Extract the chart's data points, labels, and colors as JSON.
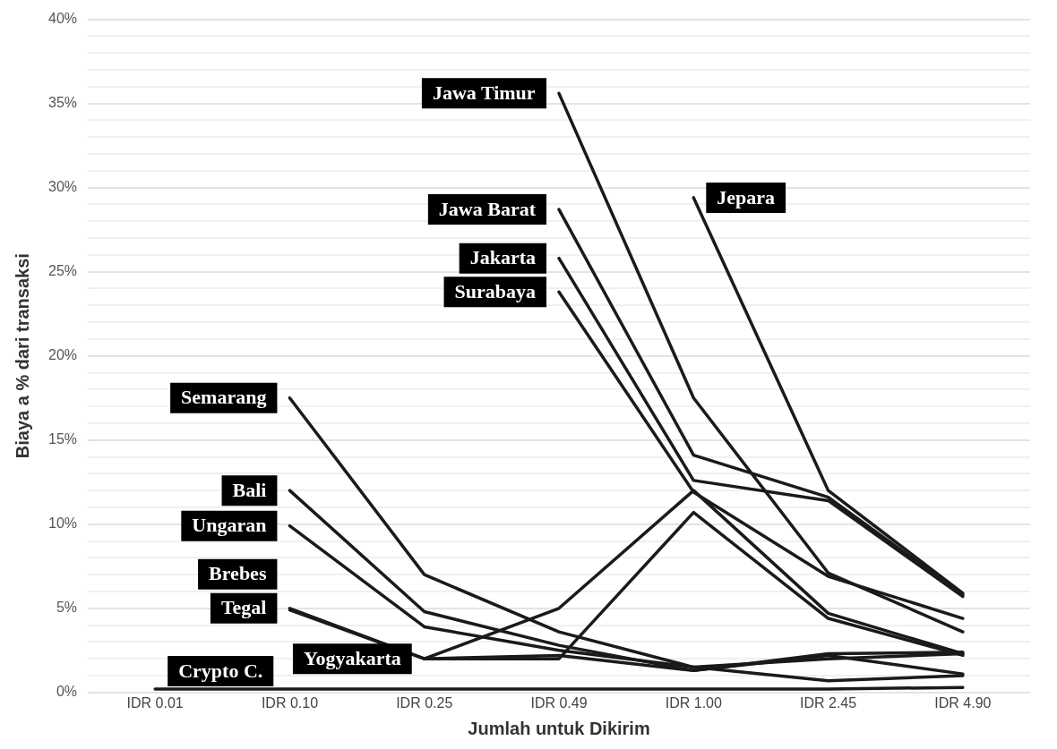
{
  "chart_data": {
    "type": "line",
    "xlabel": "Jumlah untuk Dikirim",
    "ylabel": "Biaya a % dari transaksi",
    "categories": [
      "IDR 0.01",
      "IDR 0.10",
      "IDR 0.25",
      "IDR 0.49",
      "IDR 1.00",
      "IDR 2.45",
      "IDR 4.90"
    ],
    "ylim": [
      0,
      40
    ],
    "yticks": [
      {
        "value": 0,
        "label": "0%"
      },
      {
        "value": 1,
        "label": null
      },
      {
        "value": 2,
        "label": null
      },
      {
        "value": 3,
        "label": null
      },
      {
        "value": 4,
        "label": null
      },
      {
        "value": 5,
        "label": "5%"
      },
      {
        "value": 6,
        "label": null
      },
      {
        "value": 7,
        "label": null
      },
      {
        "value": 8,
        "label": null
      },
      {
        "value": 9,
        "label": null
      },
      {
        "value": 10,
        "label": "10%"
      },
      {
        "value": 11,
        "label": null
      },
      {
        "value": 12,
        "label": null
      },
      {
        "value": 13,
        "label": null
      },
      {
        "value": 14,
        "label": null
      },
      {
        "value": 15,
        "label": "15%"
      },
      {
        "value": 16,
        "label": null
      },
      {
        "value": 17,
        "label": null
      },
      {
        "value": 18,
        "label": null
      },
      {
        "value": 19,
        "label": null
      },
      {
        "value": 20,
        "label": "20%"
      },
      {
        "value": 21,
        "label": null
      },
      {
        "value": 22,
        "label": null
      },
      {
        "value": 23,
        "label": null
      },
      {
        "value": 24,
        "label": null
      },
      {
        "value": 25,
        "label": "25%"
      },
      {
        "value": 26,
        "label": null
      },
      {
        "value": 27,
        "label": null
      },
      {
        "value": 28,
        "label": null
      },
      {
        "value": 29,
        "label": null
      },
      {
        "value": 30,
        "label": "30%"
      },
      {
        "value": 31,
        "label": null
      },
      {
        "value": 32,
        "label": null
      },
      {
        "value": 33,
        "label": null
      },
      {
        "value": 34,
        "label": null
      },
      {
        "value": 35,
        "label": "35%"
      },
      {
        "value": 36,
        "label": null
      },
      {
        "value": 37,
        "label": null
      },
      {
        "value": 38,
        "label": null
      },
      {
        "value": 39,
        "label": null
      },
      {
        "value": 40,
        "label": "40%"
      }
    ],
    "grid": "y",
    "legend": false,
    "marker": "none",
    "line_style": "solid",
    "series": [
      {
        "name": "Jawa Timur",
        "color": "#1a1a1a",
        "values": [
          null,
          null,
          null,
          35.6,
          17.5,
          7.1,
          3.6
        ]
      },
      {
        "name": "Jawa Barat",
        "color": "#1a1a1a",
        "values": [
          null,
          null,
          null,
          28.7,
          14.1,
          11.6,
          5.8
        ]
      },
      {
        "name": "Jakarta",
        "color": "#1a1a1a",
        "values": [
          null,
          null,
          null,
          25.8,
          12.6,
          11.4,
          5.7
        ]
      },
      {
        "name": "Surabaya",
        "color": "#1a1a1a",
        "values": [
          null,
          null,
          null,
          23.8,
          11.9,
          6.9,
          4.4
        ]
      },
      {
        "name": "Jepara",
        "color": "#1a1a1a",
        "values": [
          null,
          null,
          null,
          null,
          29.4,
          12.0,
          5.9
        ]
      },
      {
        "name": "Semarang",
        "color": "#1a1a1a",
        "values": [
          null,
          17.5,
          7.0,
          3.6,
          1.5,
          0.7,
          1.0
        ]
      },
      {
        "name": "Bali",
        "color": "#1a1a1a",
        "values": [
          null,
          12.0,
          4.8,
          2.8,
          1.3,
          2.3,
          2.4
        ]
      },
      {
        "name": "Ungaran",
        "color": "#1a1a1a",
        "values": [
          null,
          9.9,
          3.9,
          2.5,
          1.5,
          2.0,
          2.3
        ]
      },
      {
        "name": "Yogyakarta",
        "color": "#1a1a1a",
        "values": [
          null,
          null,
          2.0,
          5.0,
          12.0,
          4.7,
          2.3
        ]
      },
      {
        "name": "Tegal",
        "color": "#1a1a1a",
        "values": [
          null,
          5.0,
          2.0,
          2.0,
          10.7,
          4.4,
          2.2
        ]
      },
      {
        "name": "Brebes",
        "color": "#1a1a1a",
        "values": [
          null,
          4.9,
          2.0,
          2.2,
          1.3,
          2.2,
          1.1
        ]
      },
      {
        "name": "Crypto C.",
        "color": "#1a1a1a",
        "values": [
          0.2,
          0.2,
          0.2,
          0.2,
          0.2,
          0.2,
          0.3
        ]
      }
    ]
  }
}
